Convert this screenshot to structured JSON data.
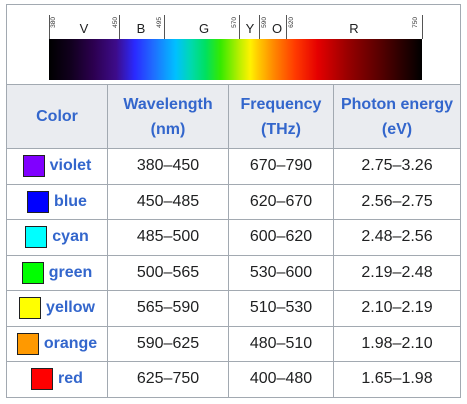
{
  "spectrum": {
    "bands": [
      "V",
      "B",
      "G",
      "Y",
      "O",
      "R"
    ],
    "tick_labels": [
      "380",
      "450",
      "495",
      "570",
      "590",
      "620",
      "750"
    ]
  },
  "table": {
    "headers": {
      "color": "Color",
      "wavelength": "Wavelength",
      "wavelength_unit": "(nm)",
      "frequency": "Frequency",
      "frequency_unit": "(THz)",
      "energy": "Photon energy",
      "energy_unit": "(eV)"
    },
    "rows": [
      {
        "name": "violet",
        "swatch": "#8000ff",
        "wavelength": "380–450",
        "frequency": "670–790",
        "energy": "2.75–3.26"
      },
      {
        "name": "blue",
        "swatch": "#0000ff",
        "wavelength": "450–485",
        "frequency": "620–670",
        "energy": "2.56–2.75"
      },
      {
        "name": "cyan",
        "swatch": "#00ffff",
        "wavelength": "485–500",
        "frequency": "600–620",
        "energy": "2.48–2.56"
      },
      {
        "name": "green",
        "swatch": "#00ff00",
        "wavelength": "500–565",
        "frequency": "530–600",
        "energy": "2.19–2.48"
      },
      {
        "name": "yellow",
        "swatch": "#ffff00",
        "wavelength": "565–590",
        "frequency": "510–530",
        "energy": "2.10–2.19"
      },
      {
        "name": "orange",
        "swatch": "#ff9900",
        "wavelength": "590–625",
        "frequency": "480–510",
        "energy": "1.98–2.10"
      },
      {
        "name": "red",
        "swatch": "#ff0000",
        "wavelength": "625–750",
        "frequency": "400–480",
        "energy": "1.65–1.98"
      }
    ]
  }
}
